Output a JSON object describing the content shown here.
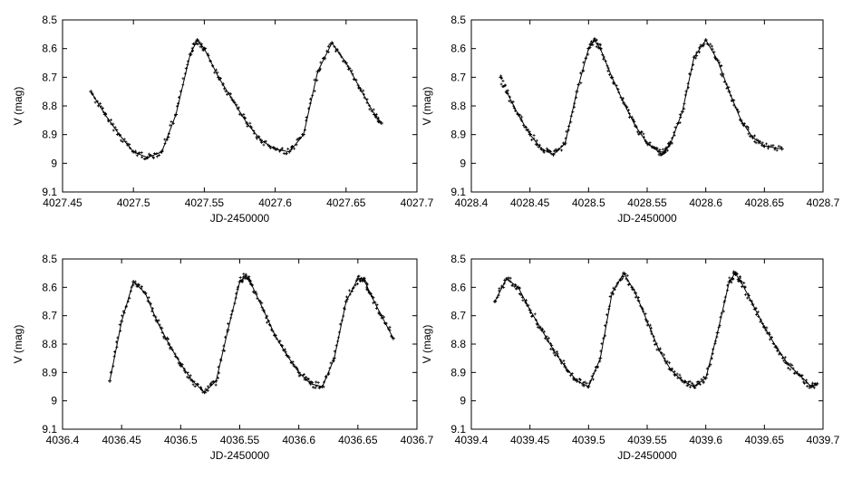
{
  "chart_data": [
    {
      "type": "scatter",
      "xlabel": "JD-2450000",
      "ylabel": "V (mag)",
      "xlim": [
        4027.45,
        4027.7
      ],
      "ylim": [
        8.5,
        9.1
      ],
      "y_inverted": true,
      "grid": false,
      "xticks": [
        "4027.45",
        "4027.5",
        "4027.55",
        "4027.6",
        "4027.65",
        "4027.7"
      ],
      "yticks": [
        "8.5",
        "8.6",
        "8.7",
        "8.8",
        "8.9",
        "9",
        "9.1"
      ],
      "series": [
        {
          "style": "points",
          "x": [
            4027.47,
            4027.48,
            4027.49,
            4027.5,
            4027.51,
            4027.52,
            4027.53,
            4027.54,
            4027.545,
            4027.55,
            4027.56,
            4027.57,
            4027.58,
            4027.59,
            4027.6,
            4027.61,
            4027.62,
            4027.63,
            4027.64,
            4027.65,
            4027.66,
            4027.67,
            4027.675
          ],
          "y": [
            8.75,
            8.83,
            8.9,
            8.96,
            8.98,
            8.96,
            8.83,
            8.62,
            8.57,
            8.6,
            8.7,
            8.78,
            8.86,
            8.92,
            8.95,
            8.96,
            8.9,
            8.68,
            8.58,
            8.65,
            8.74,
            8.83,
            8.86
          ]
        },
        {
          "style": "line",
          "x": [
            4027.47,
            4027.48,
            4027.49,
            4027.5,
            4027.51,
            4027.52,
            4027.53,
            4027.54,
            4027.545,
            4027.55,
            4027.56,
            4027.57,
            4027.58,
            4027.59,
            4027.6,
            4027.61,
            4027.62,
            4027.63,
            4027.64,
            4027.65,
            4027.66,
            4027.67,
            4027.675
          ],
          "y": [
            8.75,
            8.83,
            8.9,
            8.96,
            8.98,
            8.96,
            8.83,
            8.62,
            8.57,
            8.6,
            8.7,
            8.78,
            8.86,
            8.92,
            8.95,
            8.96,
            8.9,
            8.68,
            8.58,
            8.65,
            8.74,
            8.83,
            8.86
          ]
        }
      ]
    },
    {
      "type": "scatter",
      "xlabel": "JD-2450000",
      "ylabel": "V (mag)",
      "xlim": [
        4028.4,
        4028.7
      ],
      "ylim": [
        8.5,
        9.1
      ],
      "y_inverted": true,
      "grid": false,
      "xticks": [
        "4028.4",
        "4028.45",
        "4028.5",
        "4028.55",
        "4028.6",
        "4028.65",
        "4028.7"
      ],
      "yticks": [
        "8.5",
        "8.6",
        "8.7",
        "8.8",
        "8.9",
        "9",
        "9.1"
      ],
      "series": [
        {
          "style": "points",
          "x": [
            4028.425,
            4028.43,
            4028.44,
            4028.45,
            4028.46,
            4028.47,
            4028.48,
            4028.49,
            4028.5,
            4028.505,
            4028.51,
            4028.52,
            4028.53,
            4028.54,
            4028.55,
            4028.56,
            4028.565,
            4028.57,
            4028.58,
            4028.59,
            4028.6,
            4028.61,
            4028.62,
            4028.63,
            4028.64,
            4028.65,
            4028.665
          ],
          "y": [
            8.7,
            8.75,
            8.83,
            8.9,
            8.95,
            8.97,
            8.93,
            8.75,
            8.6,
            8.57,
            8.6,
            8.7,
            8.79,
            8.87,
            8.93,
            8.96,
            8.96,
            8.93,
            8.82,
            8.63,
            8.57,
            8.64,
            8.75,
            8.85,
            8.91,
            8.94,
            8.95
          ]
        },
        {
          "style": "line",
          "x": [
            4028.43,
            4028.44,
            4028.45,
            4028.46,
            4028.47,
            4028.48,
            4028.49,
            4028.5,
            4028.505,
            4028.51,
            4028.52,
            4028.53,
            4028.54,
            4028.55,
            4028.56,
            4028.565,
            4028.57,
            4028.58,
            4028.59,
            4028.6,
            4028.61,
            4028.62,
            4028.63,
            4028.64,
            4028.65,
            4028.665
          ],
          "y": [
            8.75,
            8.83,
            8.9,
            8.95,
            8.97,
            8.93,
            8.75,
            8.6,
            8.57,
            8.6,
            8.7,
            8.79,
            8.87,
            8.93,
            8.96,
            8.96,
            8.93,
            8.82,
            8.63,
            8.57,
            8.64,
            8.75,
            8.85,
            8.91,
            8.94,
            8.95
          ]
        }
      ]
    },
    {
      "type": "scatter",
      "xlabel": "JD-2450000",
      "ylabel": "V (mag)",
      "xlim": [
        4036.4,
        4036.7
      ],
      "ylim": [
        8.5,
        9.1
      ],
      "y_inverted": true,
      "grid": false,
      "xticks": [
        "4036.4",
        "4036.45",
        "4036.5",
        "4036.55",
        "4036.6",
        "4036.65",
        "4036.7"
      ],
      "yticks": [
        "8.5",
        "8.6",
        "8.7",
        "8.8",
        "8.9",
        "9",
        "9.1"
      ],
      "series": [
        {
          "style": "points",
          "x": [
            4036.44,
            4036.45,
            4036.46,
            4036.47,
            4036.48,
            4036.49,
            4036.5,
            4036.51,
            4036.52,
            4036.53,
            4036.54,
            4036.55,
            4036.555,
            4036.56,
            4036.57,
            4036.58,
            4036.59,
            4036.6,
            4036.61,
            4036.62,
            4036.63,
            4036.64,
            4036.65,
            4036.655,
            4036.66,
            4036.67,
            4036.68
          ],
          "y": [
            8.93,
            8.72,
            8.58,
            8.62,
            8.72,
            8.8,
            8.87,
            8.93,
            8.97,
            8.93,
            8.75,
            8.58,
            8.56,
            8.59,
            8.68,
            8.77,
            8.84,
            8.9,
            8.94,
            8.95,
            8.85,
            8.65,
            8.57,
            8.57,
            8.62,
            8.7,
            8.78
          ]
        },
        {
          "style": "line",
          "x": [
            4036.44,
            4036.45,
            4036.46,
            4036.47,
            4036.48,
            4036.49,
            4036.5,
            4036.51,
            4036.52,
            4036.53,
            4036.54,
            4036.55,
            4036.555,
            4036.56,
            4036.57,
            4036.58,
            4036.59,
            4036.6,
            4036.61,
            4036.62,
            4036.63,
            4036.64,
            4036.65,
            4036.655,
            4036.66,
            4036.67,
            4036.68
          ],
          "y": [
            8.93,
            8.72,
            8.58,
            8.62,
            8.72,
            8.8,
            8.87,
            8.93,
            8.97,
            8.93,
            8.75,
            8.58,
            8.56,
            8.59,
            8.68,
            8.77,
            8.84,
            8.9,
            8.94,
            8.95,
            8.85,
            8.65,
            8.57,
            8.57,
            8.62,
            8.7,
            8.78
          ]
        }
      ]
    },
    {
      "type": "scatter",
      "xlabel": "JD-2450000",
      "ylabel": "V (mag)",
      "xlim": [
        4039.4,
        4039.7
      ],
      "ylim": [
        8.5,
        9.1
      ],
      "y_inverted": true,
      "grid": false,
      "xticks": [
        "4039.4",
        "4039.45",
        "4039.5",
        "4039.55",
        "4039.6",
        "4039.65",
        "4039.7"
      ],
      "yticks": [
        "8.5",
        "8.6",
        "8.7",
        "8.8",
        "8.9",
        "9",
        "9.1"
      ],
      "series": [
        {
          "style": "points",
          "x": [
            4039.42,
            4039.43,
            4039.44,
            4039.45,
            4039.46,
            4039.47,
            4039.48,
            4039.49,
            4039.5,
            4039.51,
            4039.52,
            4039.53,
            4039.54,
            4039.55,
            4039.56,
            4039.57,
            4039.58,
            4039.59,
            4039.6,
            4039.61,
            4039.62,
            4039.625,
            4039.63,
            4039.64,
            4039.65,
            4039.66,
            4039.67,
            4039.68,
            4039.69,
            4039.695
          ],
          "y": [
            8.65,
            8.57,
            8.6,
            8.68,
            8.75,
            8.82,
            8.88,
            8.93,
            8.95,
            8.85,
            8.62,
            8.55,
            8.62,
            8.72,
            8.82,
            8.89,
            8.93,
            8.95,
            8.92,
            8.76,
            8.58,
            8.55,
            8.58,
            8.66,
            8.74,
            8.81,
            8.87,
            8.91,
            8.95,
            8.94
          ]
        },
        {
          "style": "line",
          "x": [
            4039.42,
            4039.43,
            4039.44,
            4039.45,
            4039.46,
            4039.47,
            4039.48,
            4039.49,
            4039.5,
            4039.51,
            4039.52,
            4039.53,
            4039.54,
            4039.55,
            4039.56,
            4039.57,
            4039.58,
            4039.59,
            4039.6,
            4039.61,
            4039.62,
            4039.625,
            4039.63,
            4039.64,
            4039.65,
            4039.66,
            4039.67,
            4039.68,
            4039.69,
            4039.695
          ],
          "y": [
            8.65,
            8.57,
            8.6,
            8.68,
            8.75,
            8.82,
            8.88,
            8.93,
            8.95,
            8.85,
            8.62,
            8.55,
            8.62,
            8.72,
            8.82,
            8.89,
            8.93,
            8.95,
            8.92,
            8.76,
            8.58,
            8.55,
            8.58,
            8.66,
            8.74,
            8.81,
            8.87,
            8.91,
            8.95,
            8.94
          ]
        }
      ]
    }
  ]
}
